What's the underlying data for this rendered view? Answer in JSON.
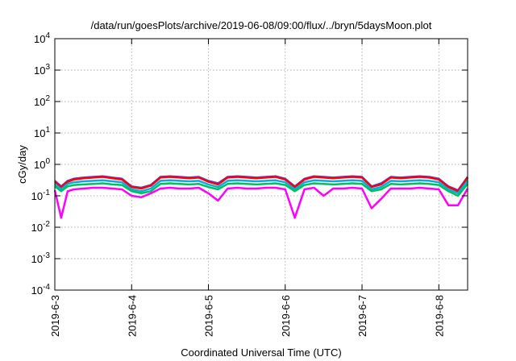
{
  "chart_data": {
    "type": "line",
    "title": "/data/run/goesPlots/archive/2019-06-08/09:00/flux/../bryn/5daysMoon.plot",
    "xlabel": "Coordinated Universal Time (UTC)",
    "ylabel": "cGy/day",
    "x_tick_labels": [
      "2019-6-3",
      "2019-6-4",
      "2019-6-5",
      "2019-6-6",
      "2019-6-7",
      "2019-6-8"
    ],
    "y_tick_labels": [
      {
        "base": "10",
        "exp": "4"
      },
      {
        "base": "10",
        "exp": "3"
      },
      {
        "base": "10",
        "exp": "2"
      },
      {
        "base": "10",
        "exp": "1"
      },
      {
        "base": "10",
        "exp": "0"
      },
      {
        "base": "10",
        "exp": "-1"
      },
      {
        "base": "10",
        "exp": "-2"
      },
      {
        "base": "10",
        "exp": "-3"
      },
      {
        "base": "10",
        "exp": "-4"
      }
    ],
    "y_scale": "log",
    "ylim": [
      0.0001,
      10000
    ],
    "xlim": [
      "2019-06-03 00:00",
      "2019-06-08 09:00"
    ],
    "grid": true,
    "series_colors": [
      "#ff00ff",
      "#ff0000",
      "#00c060",
      "#00b0e0",
      "#4040ff"
    ],
    "series": [
      {
        "color": "#4040ff",
        "x": [
          "2019-06-03 00:00",
          "2019-06-03 02:00",
          "2019-06-03 04:00",
          "2019-06-03 06:00",
          "2019-06-03 09:00",
          "2019-06-03 12:00",
          "2019-06-03 15:00",
          "2019-06-03 18:00",
          "2019-06-03 21:00",
          "2019-06-04 00:00",
          "2019-06-04 03:00",
          "2019-06-04 06:00",
          "2019-06-04 09:00",
          "2019-06-04 12:00",
          "2019-06-04 15:00",
          "2019-06-04 18:00",
          "2019-06-04 21:00",
          "2019-06-05 00:00",
          "2019-06-05 03:00",
          "2019-06-05 06:00",
          "2019-06-05 09:00",
          "2019-06-05 12:00",
          "2019-06-05 15:00",
          "2019-06-05 18:00",
          "2019-06-05 21:00",
          "2019-06-06 00:00",
          "2019-06-06 03:00",
          "2019-06-06 06:00",
          "2019-06-06 09:00",
          "2019-06-06 12:00",
          "2019-06-06 15:00",
          "2019-06-06 18:00",
          "2019-06-06 21:00",
          "2019-06-07 00:00",
          "2019-06-07 03:00",
          "2019-06-07 06:00",
          "2019-06-07 09:00",
          "2019-06-07 12:00",
          "2019-06-07 15:00",
          "2019-06-07 18:00",
          "2019-06-07 21:00",
          "2019-06-08 00:00",
          "2019-06-08 03:00",
          "2019-06-08 06:00",
          "2019-06-08 09:00"
        ],
        "y": [
          0.3,
          0.2,
          0.3,
          0.35,
          0.38,
          0.4,
          0.42,
          0.38,
          0.35,
          0.2,
          0.18,
          0.22,
          0.4,
          0.42,
          0.4,
          0.38,
          0.4,
          0.3,
          0.25,
          0.4,
          0.42,
          0.4,
          0.38,
          0.4,
          0.42,
          0.35,
          0.2,
          0.35,
          0.42,
          0.4,
          0.38,
          0.4,
          0.42,
          0.4,
          0.2,
          0.25,
          0.4,
          0.38,
          0.4,
          0.42,
          0.4,
          0.35,
          0.2,
          0.15,
          0.4
        ]
      },
      {
        "color": "#ff0000",
        "x": [
          "2019-06-03 00:00",
          "2019-06-03 02:00",
          "2019-06-03 04:00",
          "2019-06-03 06:00",
          "2019-06-03 09:00",
          "2019-06-03 12:00",
          "2019-06-03 15:00",
          "2019-06-03 18:00",
          "2019-06-03 21:00",
          "2019-06-04 00:00",
          "2019-06-04 03:00",
          "2019-06-04 06:00",
          "2019-06-04 09:00",
          "2019-06-04 12:00",
          "2019-06-04 15:00",
          "2019-06-04 18:00",
          "2019-06-04 21:00",
          "2019-06-05 00:00",
          "2019-06-05 03:00",
          "2019-06-05 06:00",
          "2019-06-05 09:00",
          "2019-06-05 12:00",
          "2019-06-05 15:00",
          "2019-06-05 18:00",
          "2019-06-05 21:00",
          "2019-06-06 00:00",
          "2019-06-06 03:00",
          "2019-06-06 06:00",
          "2019-06-06 09:00",
          "2019-06-06 12:00",
          "2019-06-06 15:00",
          "2019-06-06 18:00",
          "2019-06-06 21:00",
          "2019-06-07 00:00",
          "2019-06-07 03:00",
          "2019-06-07 06:00",
          "2019-06-07 09:00",
          "2019-06-07 12:00",
          "2019-06-07 15:00",
          "2019-06-07 18:00",
          "2019-06-07 21:00",
          "2019-06-08 00:00",
          "2019-06-08 03:00",
          "2019-06-08 06:00",
          "2019-06-08 09:00"
        ],
        "y": [
          0.28,
          0.19,
          0.28,
          0.33,
          0.36,
          0.38,
          0.4,
          0.36,
          0.33,
          0.19,
          0.17,
          0.21,
          0.38,
          0.4,
          0.38,
          0.36,
          0.38,
          0.28,
          0.23,
          0.38,
          0.4,
          0.38,
          0.36,
          0.38,
          0.4,
          0.33,
          0.19,
          0.33,
          0.4,
          0.38,
          0.36,
          0.38,
          0.4,
          0.38,
          0.19,
          0.23,
          0.38,
          0.36,
          0.38,
          0.4,
          0.38,
          0.33,
          0.19,
          0.14,
          0.38
        ]
      },
      {
        "color": "#00b0e0",
        "x": [
          "2019-06-03 00:00",
          "2019-06-03 02:00",
          "2019-06-03 04:00",
          "2019-06-03 06:00",
          "2019-06-03 09:00",
          "2019-06-03 12:00",
          "2019-06-03 15:00",
          "2019-06-03 18:00",
          "2019-06-03 21:00",
          "2019-06-04 00:00",
          "2019-06-04 03:00",
          "2019-06-04 06:00",
          "2019-06-04 09:00",
          "2019-06-04 12:00",
          "2019-06-04 15:00",
          "2019-06-04 18:00",
          "2019-06-04 21:00",
          "2019-06-05 00:00",
          "2019-06-05 03:00",
          "2019-06-05 06:00",
          "2019-06-05 09:00",
          "2019-06-05 12:00",
          "2019-06-05 15:00",
          "2019-06-05 18:00",
          "2019-06-05 21:00",
          "2019-06-06 00:00",
          "2019-06-06 03:00",
          "2019-06-06 06:00",
          "2019-06-06 09:00",
          "2019-06-06 12:00",
          "2019-06-06 15:00",
          "2019-06-06 18:00",
          "2019-06-06 21:00",
          "2019-06-07 00:00",
          "2019-06-07 03:00",
          "2019-06-07 06:00",
          "2019-06-07 09:00",
          "2019-06-07 12:00",
          "2019-06-07 15:00",
          "2019-06-07 18:00",
          "2019-06-07 21:00",
          "2019-06-08 00:00",
          "2019-06-08 03:00",
          "2019-06-08 06:00",
          "2019-06-08 09:00"
        ],
        "y": [
          0.24,
          0.16,
          0.24,
          0.27,
          0.29,
          0.3,
          0.31,
          0.29,
          0.27,
          0.16,
          0.14,
          0.17,
          0.3,
          0.31,
          0.3,
          0.29,
          0.3,
          0.23,
          0.19,
          0.3,
          0.31,
          0.3,
          0.29,
          0.3,
          0.31,
          0.27,
          0.16,
          0.27,
          0.31,
          0.3,
          0.29,
          0.3,
          0.31,
          0.3,
          0.16,
          0.19,
          0.3,
          0.29,
          0.3,
          0.31,
          0.3,
          0.27,
          0.16,
          0.12,
          0.3
        ]
      },
      {
        "color": "#00c060",
        "x": [
          "2019-06-03 00:00",
          "2019-06-03 02:00",
          "2019-06-03 04:00",
          "2019-06-03 06:00",
          "2019-06-03 09:00",
          "2019-06-03 12:00",
          "2019-06-03 15:00",
          "2019-06-03 18:00",
          "2019-06-03 21:00",
          "2019-06-04 00:00",
          "2019-06-04 03:00",
          "2019-06-04 06:00",
          "2019-06-04 09:00",
          "2019-06-04 12:00",
          "2019-06-04 15:00",
          "2019-06-04 18:00",
          "2019-06-04 21:00",
          "2019-06-05 00:00",
          "2019-06-05 03:00",
          "2019-06-05 06:00",
          "2019-06-05 09:00",
          "2019-06-05 12:00",
          "2019-06-05 15:00",
          "2019-06-05 18:00",
          "2019-06-05 21:00",
          "2019-06-06 00:00",
          "2019-06-06 03:00",
          "2019-06-06 06:00",
          "2019-06-06 09:00",
          "2019-06-06 12:00",
          "2019-06-06 15:00",
          "2019-06-06 18:00",
          "2019-06-06 21:00",
          "2019-06-07 00:00",
          "2019-06-07 03:00",
          "2019-06-07 06:00",
          "2019-06-07 09:00",
          "2019-06-07 12:00",
          "2019-06-07 15:00",
          "2019-06-07 18:00",
          "2019-06-07 21:00",
          "2019-06-08 00:00",
          "2019-06-08 03:00",
          "2019-06-08 06:00",
          "2019-06-08 09:00"
        ],
        "y": [
          0.2,
          0.14,
          0.2,
          0.22,
          0.23,
          0.24,
          0.25,
          0.23,
          0.22,
          0.14,
          0.12,
          0.14,
          0.24,
          0.25,
          0.24,
          0.23,
          0.24,
          0.19,
          0.16,
          0.24,
          0.25,
          0.24,
          0.23,
          0.24,
          0.25,
          0.22,
          0.14,
          0.22,
          0.25,
          0.24,
          0.23,
          0.24,
          0.25,
          0.24,
          0.14,
          0.16,
          0.24,
          0.23,
          0.24,
          0.25,
          0.24,
          0.22,
          0.14,
          0.1,
          0.24
        ]
      },
      {
        "color": "#ff00ff",
        "x": [
          "2019-06-03 00:00",
          "2019-06-03 02:00",
          "2019-06-03 04:00",
          "2019-06-03 06:00",
          "2019-06-03 09:00",
          "2019-06-03 12:00",
          "2019-06-03 15:00",
          "2019-06-03 18:00",
          "2019-06-03 21:00",
          "2019-06-04 00:00",
          "2019-06-04 03:00",
          "2019-06-04 06:00",
          "2019-06-04 09:00",
          "2019-06-04 12:00",
          "2019-06-04 15:00",
          "2019-06-04 18:00",
          "2019-06-04 21:00",
          "2019-06-05 00:00",
          "2019-06-05 03:00",
          "2019-06-05 06:00",
          "2019-06-05 09:00",
          "2019-06-05 12:00",
          "2019-06-05 15:00",
          "2019-06-05 18:00",
          "2019-06-05 21:00",
          "2019-06-06 00:00",
          "2019-06-06 03:00",
          "2019-06-06 06:00",
          "2019-06-06 09:00",
          "2019-06-06 12:00",
          "2019-06-06 15:00",
          "2019-06-06 18:00",
          "2019-06-06 21:00",
          "2019-06-07 00:00",
          "2019-06-07 03:00",
          "2019-06-07 06:00",
          "2019-06-07 09:00",
          "2019-06-07 12:00",
          "2019-06-07 15:00",
          "2019-06-07 18:00",
          "2019-06-07 21:00",
          "2019-06-08 00:00",
          "2019-06-08 03:00",
          "2019-06-08 06:00",
          "2019-06-08 09:00"
        ],
        "y": [
          0.15,
          0.02,
          0.14,
          0.16,
          0.17,
          0.18,
          0.18,
          0.17,
          0.16,
          0.1,
          0.09,
          0.12,
          0.17,
          0.18,
          0.17,
          0.17,
          0.18,
          0.12,
          0.07,
          0.17,
          0.18,
          0.17,
          0.17,
          0.18,
          0.18,
          0.16,
          0.02,
          0.16,
          0.18,
          0.1,
          0.17,
          0.17,
          0.18,
          0.17,
          0.04,
          0.08,
          0.17,
          0.17,
          0.17,
          0.18,
          0.17,
          0.16,
          0.05,
          0.05,
          0.17
        ]
      }
    ]
  }
}
